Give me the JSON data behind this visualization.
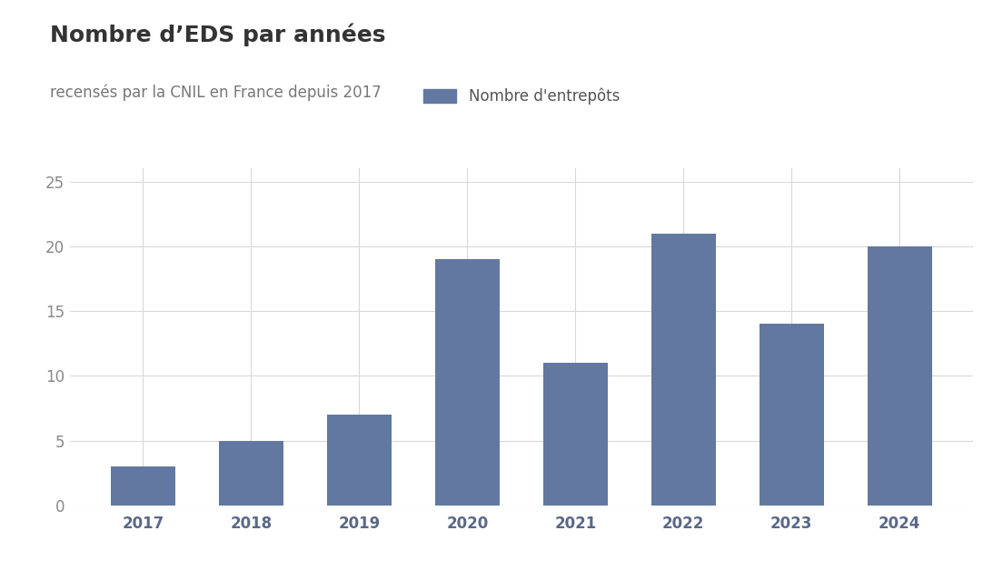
{
  "title": "Nombre d’EDS par années",
  "subtitle": "recensés par la CNIL en France depuis 2017",
  "years": [
    2017,
    2018,
    2019,
    2020,
    2021,
    2022,
    2023,
    2024
  ],
  "values": [
    3,
    5,
    7,
    19,
    11,
    21,
    14,
    20
  ],
  "bar_color": "#6278a0",
  "legend_label": "Nombre d'entrepôts",
  "ylim": [
    0,
    26
  ],
  "yticks": [
    0,
    5,
    10,
    15,
    20,
    25
  ],
  "background_color": "#ffffff",
  "grid_color": "#d8d8d8",
  "title_color": "#333333",
  "subtitle_color": "#777777",
  "tick_label_color": "#888888",
  "xtick_color": "#5a6888",
  "title_fontsize": 18,
  "subtitle_fontsize": 12,
  "tick_fontsize": 12,
  "legend_fontsize": 12
}
